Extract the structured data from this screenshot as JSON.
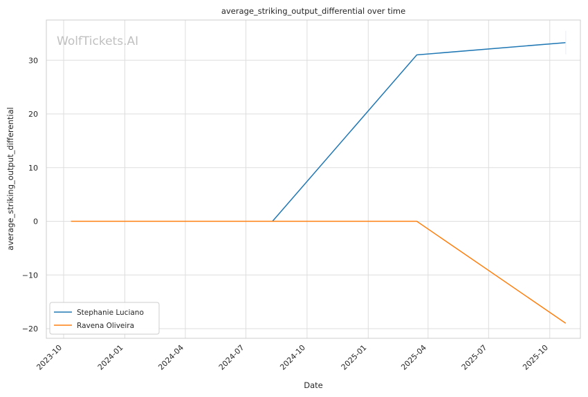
{
  "chart_data": {
    "type": "line",
    "title": "average_striking_output_differential over time",
    "xlabel": "Date",
    "ylabel": "average_striking_output_differential",
    "watermark": "WolfTickets.AI",
    "x_ticks": [
      "2023-10",
      "2024-01",
      "2024-04",
      "2024-07",
      "2024-10",
      "2025-01",
      "2025-04",
      "2025-07",
      "2025-10"
    ],
    "y_ticks": [
      -20,
      -10,
      0,
      10,
      20,
      30
    ],
    "y_tick_labels": [
      "−20",
      "−10",
      "0",
      "10",
      "20",
      "30"
    ],
    "xlim": [
      "2023-09-05",
      "2025-11-16"
    ],
    "ylim": [
      -21.8,
      37.5
    ],
    "grid": true,
    "legend_position": "lower-left",
    "series": [
      {
        "name": "Stephanie Luciano",
        "color": "#1f77b4",
        "points": [
          {
            "x": "2024-08-10",
            "y": 0
          },
          {
            "x": "2025-03-15",
            "y": 31
          },
          {
            "x": "2025-10-25",
            "y": 33.3
          }
        ]
      },
      {
        "name": "Ravena Oliveira",
        "color": "#ff7f0e",
        "points": [
          {
            "x": "2023-10-12",
            "y": 0
          },
          {
            "x": "2024-08-10",
            "y": 0
          },
          {
            "x": "2025-03-15",
            "y": 0
          },
          {
            "x": "2025-10-25",
            "y": -19
          }
        ]
      }
    ]
  }
}
